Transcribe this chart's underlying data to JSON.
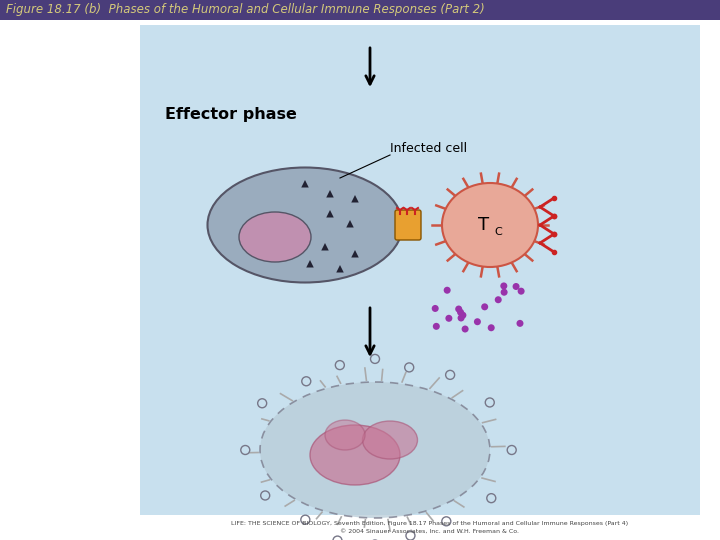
{
  "title": "Figure 18.17 (b)  Phases of the Humoral and Cellular Immune Responses (Part 2)",
  "title_bg": "#4a3d7a",
  "title_color": "#d4c97a",
  "bg_color": "#ffffff",
  "panel_bg": "#c8e0ee",
  "caption_line1": "LIFE: THE SCIENCE OF BIOLOGY, Seventh Edition, Figure 18.17 Phases of the Humoral and Cellular Immune Responses (Part 4)",
  "caption_line2": "© 2004 Sinauer Associates, Inc. and W.H. Freeman & Co.",
  "effector_label": "Effector phase",
  "infected_cell_label": "Infected cell",
  "tc_label": "T",
  "tc_subscript": "C",
  "cell_color": "#9aacbe",
  "cell_edge": "#555566",
  "nucleus_color": "#c090b0",
  "tc_color": "#e8a898",
  "tc_edge": "#cc5544",
  "connector_color": "#e8a030",
  "dot_color": "#9933aa",
  "dying_color": "#b8ccd8",
  "dying_nucleus": "#c87898"
}
